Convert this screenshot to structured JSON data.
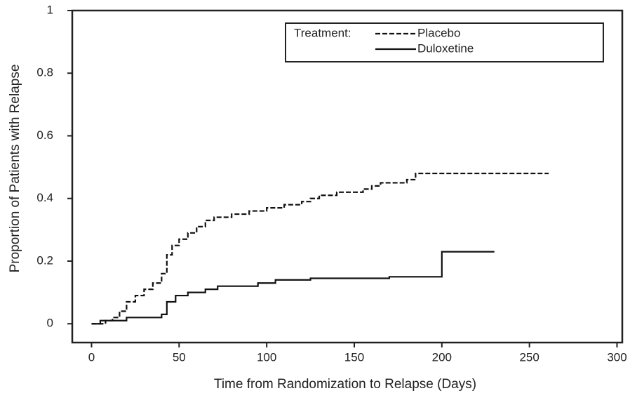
{
  "chart_data": {
    "type": "step",
    "xlabel": "Time from Randomization to Relapse (Days)",
    "ylabel": "Proportion of Patients with Relapse",
    "xlim": [
      -11,
      303
    ],
    "xticks": [
      0,
      50,
      100,
      150,
      200,
      250,
      300
    ],
    "ylim": [
      -0.06,
      1
    ],
    "yticks": [
      0,
      0.2,
      0.4,
      0.6,
      0.8,
      1
    ],
    "legend_title": "Treatment:",
    "legend": "upper right",
    "series": [
      {
        "name": "Placebo",
        "color": "#111111",
        "dashed": true,
        "x": [
          0,
          8,
          12,
          16,
          20,
          25,
          30,
          35,
          40,
          43,
          46,
          50,
          55,
          60,
          65,
          70,
          80,
          90,
          100,
          110,
          120,
          125,
          130,
          140,
          155,
          160,
          165,
          180,
          185,
          261
        ],
        "values": [
          0,
          0.01,
          0.02,
          0.04,
          0.07,
          0.09,
          0.11,
          0.13,
          0.16,
          0.22,
          0.25,
          0.27,
          0.29,
          0.31,
          0.33,
          0.34,
          0.35,
          0.36,
          0.37,
          0.38,
          0.39,
          0.4,
          0.41,
          0.42,
          0.43,
          0.44,
          0.45,
          0.46,
          0.48,
          0.48
        ]
      },
      {
        "name": "Duloxetine",
        "color": "#111111",
        "dashed": false,
        "x": [
          0,
          5,
          20,
          40,
          43,
          48,
          55,
          65,
          72,
          95,
          105,
          125,
          170,
          200,
          230
        ],
        "values": [
          0,
          0.01,
          0.02,
          0.03,
          0.07,
          0.09,
          0.1,
          0.11,
          0.12,
          0.13,
          0.14,
          0.145,
          0.15,
          0.23,
          0.23
        ]
      }
    ]
  }
}
